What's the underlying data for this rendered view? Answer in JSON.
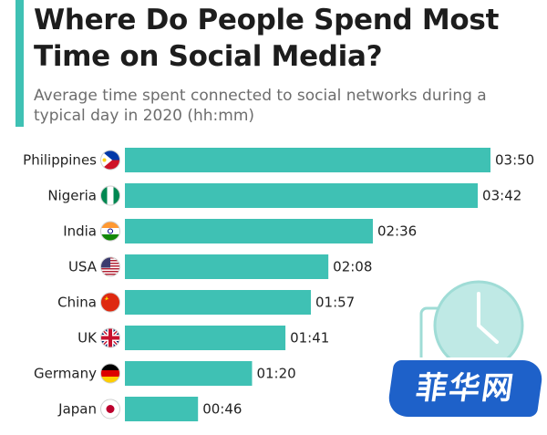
{
  "header": {
    "title": "Where Do People Spend Most Time on Social Media?",
    "subtitle": "Average time spent connected to social networks during a typical day in 2020 (hh:mm)"
  },
  "colors": {
    "bar": "#3fc1b4",
    "accent": "#3fc1b4"
  },
  "watermark": {
    "text": "菲华网"
  },
  "chart_data": {
    "type": "bar",
    "orientation": "horizontal",
    "categories": [
      "Philippines",
      "Nigeria",
      "India",
      "USA",
      "China",
      "UK",
      "Germany",
      "Japan"
    ],
    "flags": [
      "philippines-flag-icon",
      "nigeria-flag-icon",
      "india-flag-icon",
      "usa-flag-icon",
      "china-flag-icon",
      "uk-flag-icon",
      "germany-flag-icon",
      "japan-flag-icon"
    ],
    "values": [
      230,
      222,
      156,
      128,
      117,
      101,
      80,
      46
    ],
    "value_labels": [
      "03:50",
      "03:42",
      "02:36",
      "02:08",
      "01:57",
      "01:41",
      "01:20",
      "00:46"
    ],
    "unit": "minutes",
    "xlim": [
      0,
      230
    ],
    "grid": false,
    "legend": "none"
  }
}
